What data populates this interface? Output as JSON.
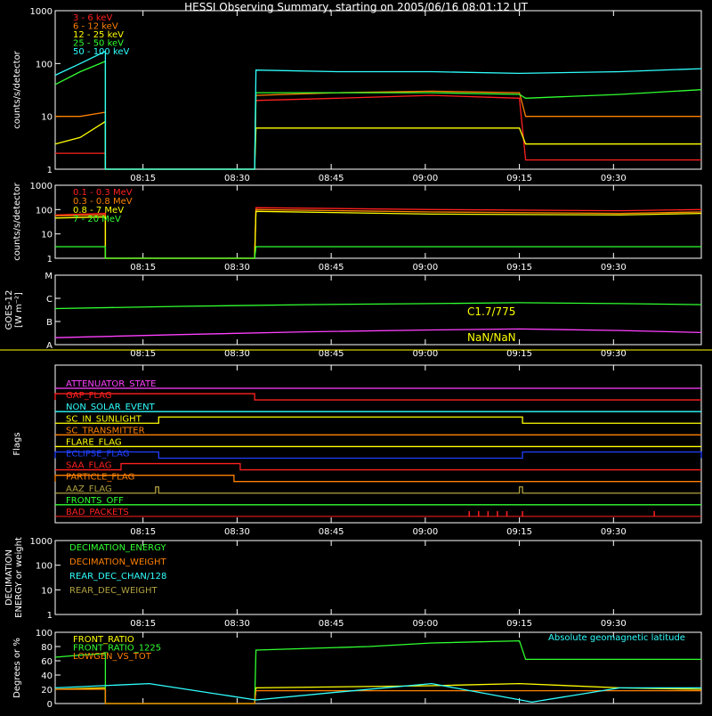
{
  "title": "HESSI Observing Summary, starting on 2005/06/16 08:01:12 UT",
  "time_ticks": [
    "08:15",
    "08:30",
    "08:45",
    "09:00",
    "09:15",
    "09:30"
  ],
  "time_tick_minutes": [
    14,
    29,
    44,
    59,
    74,
    89
  ],
  "time_span_minutes": [
    0,
    103
  ],
  "colors": {
    "axis": "#ffffff",
    "red": "#ff2020",
    "orange": "#ff8000",
    "yellow": "#ffff00",
    "green": "#30ff30",
    "cyan": "#30ffff",
    "magenta": "#ff40ff",
    "blue": "#2040ff",
    "olive": "#b0a040"
  },
  "chart_data": [
    {
      "type": "line",
      "panel": "rates_low",
      "ylabel": "counts/s/detector",
      "scale": "log",
      "ylim": [
        1,
        1000
      ],
      "y_ticks": [
        "1",
        "10",
        "100",
        "1000"
      ],
      "gap_minutes": [
        8,
        31.8
      ],
      "series": [
        {
          "name": "3 - 6 keV",
          "color": "red",
          "x": [
            0,
            4,
            8,
            32,
            45,
            60,
            74,
            75,
            90,
            103
          ],
          "y": [
            2,
            2,
            2,
            20,
            22,
            25,
            22,
            1.5,
            1.5,
            1.5
          ]
        },
        {
          "name": "6 - 12 keV",
          "color": "orange",
          "x": [
            0,
            4,
            8,
            32,
            45,
            60,
            74,
            75,
            90,
            103
          ],
          "y": [
            10,
            10,
            12,
            25,
            28,
            30,
            28,
            10,
            10,
            10
          ]
        },
        {
          "name": "12 - 25 keV",
          "color": "yellow",
          "x": [
            0,
            4,
            8,
            32,
            45,
            60,
            74,
            75,
            90,
            103
          ],
          "y": [
            3,
            4,
            8,
            6,
            6,
            6,
            6,
            3,
            3,
            3
          ]
        },
        {
          "name": "25 - 50 keV",
          "color": "green",
          "x": [
            0,
            4,
            8,
            32,
            45,
            60,
            74,
            75,
            90,
            103
          ],
          "y": [
            40,
            70,
            110,
            28,
            28,
            28,
            26,
            22,
            26,
            32
          ]
        },
        {
          "name": "50 - 100 keV",
          "color": "cyan",
          "x": [
            0,
            4,
            8,
            32,
            45,
            60,
            74,
            90,
            103
          ],
          "y": [
            60,
            100,
            170,
            75,
            70,
            70,
            65,
            70,
            80
          ]
        }
      ]
    },
    {
      "type": "line",
      "panel": "rates_high",
      "ylabel": "counts/s/detector",
      "scale": "log",
      "ylim": [
        1,
        1000
      ],
      "y_ticks": [
        "1",
        "10",
        "100",
        "1000"
      ],
      "gap_minutes": [
        8,
        31.8
      ],
      "series": [
        {
          "name": "0.1 - 0.3 MeV",
          "color": "red",
          "x": [
            0,
            8,
            32,
            60,
            90,
            103
          ],
          "y": [
            60,
            70,
            120,
            100,
            90,
            100
          ]
        },
        {
          "name": "0.3 - 0.8 MeV",
          "color": "orange",
          "x": [
            0,
            8,
            32,
            60,
            90,
            103
          ],
          "y": [
            55,
            60,
            100,
            80,
            70,
            80
          ]
        },
        {
          "name": "0.8 - 7 MeV",
          "color": "yellow",
          "x": [
            0,
            8,
            32,
            60,
            90,
            103
          ],
          "y": [
            45,
            50,
            85,
            65,
            60,
            70
          ]
        },
        {
          "name": "7 - 20 MeV",
          "color": "green",
          "x": [
            0,
            8,
            32,
            60,
            90,
            103
          ],
          "y": [
            3,
            3,
            3,
            3,
            3,
            3
          ]
        }
      ]
    },
    {
      "type": "line",
      "panel": "goes",
      "ylabel": "GOES-12",
      "ylabel2": "[W m⁻²]",
      "scale": "log",
      "ylim": [
        1e-08,
        0.0001
      ],
      "y_ticks": [
        "A",
        "B",
        "C",
        "M"
      ],
      "annotations": [
        "C1.7/775",
        "NaN/NaN"
      ],
      "series": [
        {
          "color": "green",
          "x": [
            0,
            20,
            40,
            60,
            74,
            90,
            103
          ],
          "y": [
            1.2e-06,
            1.6e-06,
            2e-06,
            2.3e-06,
            2.6e-06,
            2.3e-06,
            2e-06
          ]
        },
        {
          "color": "magenta",
          "x": [
            0,
            20,
            40,
            60,
            74,
            90,
            103
          ],
          "y": [
            2.5e-08,
            3.8e-08,
            5.5e-08,
            7e-08,
            8e-08,
            6.5e-08,
            5e-08
          ]
        }
      ]
    },
    {
      "type": "table",
      "panel": "flags",
      "ylabel": "Flags",
      "rows": [
        {
          "name": "ATTENUATOR_STATE",
          "color": "magenta",
          "on": []
        },
        {
          "name": "GAP_FLAG",
          "color": "red",
          "on": [
            [
              0,
              31.8
            ]
          ]
        },
        {
          "name": "NON_SOLAR_EVENT",
          "color": "cyan",
          "on": []
        },
        {
          "name": "SC_IN_SUNLIGHT",
          "color": "yellow",
          "on": [
            [
              16.5,
              74.5
            ]
          ]
        },
        {
          "name": "SC_TRANSMITTER",
          "color": "orange",
          "on": []
        },
        {
          "name": "FLARE_FLAG",
          "color": "yellow",
          "on": []
        },
        {
          "name": "ECLIPSE_FLAG",
          "color": "blue",
          "on": [
            [
              0,
              16.5
            ],
            [
              74.5,
              103
            ]
          ]
        },
        {
          "name": "SAA_FLAG",
          "color": "red",
          "on": [
            [
              10.5,
              29.5
            ]
          ]
        },
        {
          "name": "PARTICLE_FLAG",
          "color": "orange",
          "on": [
            [
              0,
              28.5
            ]
          ]
        },
        {
          "name": "AAZ_FLAG",
          "color": "olive",
          "on": [
            [
              16.0,
              16.5
            ],
            [
              74.0,
              74.5
            ]
          ]
        },
        {
          "name": "FRONTS_OFF",
          "color": "green",
          "on": []
        },
        {
          "name": "BAD_PACKETS",
          "color": "red",
          "spikes": [
            66,
            67.5,
            69,
            70.5,
            72,
            74.5,
            95.5
          ]
        }
      ]
    },
    {
      "type": "line",
      "panel": "decimation",
      "ylabel": "DECIMATION",
      "ylabel2": "ENERGY or weight",
      "scale": "log",
      "ylim": [
        1,
        1000
      ],
      "y_ticks": [
        "1",
        "10",
        "100",
        "1000"
      ],
      "series": [
        {
          "name": "DECIMATION_ENERGY",
          "color": "green",
          "x": [],
          "y": []
        },
        {
          "name": "DECIMATION_WEIGHT",
          "color": "orange",
          "x": [],
          "y": []
        },
        {
          "name": "REAR_DEC_CHAN/128",
          "color": "cyan",
          "x": [],
          "y": []
        },
        {
          "name": "REAR_DEC_WEIGHT",
          "color": "olive",
          "x": [],
          "y": []
        }
      ]
    },
    {
      "type": "line",
      "panel": "ratios",
      "ylabel": "Degrees or %",
      "scale": "linear",
      "ylim": [
        0,
        100
      ],
      "y_ticks": [
        "0",
        "20",
        "40",
        "60",
        "80",
        "100"
      ],
      "annotations": [
        "Absolute geomagnetic latitude"
      ],
      "gap_minutes": [
        8,
        31.8
      ],
      "series": [
        {
          "name": "FRONT_RATIO",
          "color": "yellow",
          "x": [
            0,
            8,
            32,
            60,
            74,
            90,
            103
          ],
          "y": [
            20,
            22,
            22,
            25,
            28,
            22,
            20
          ]
        },
        {
          "name": "FRONT_RATIO_1225",
          "color": "green",
          "x": [
            0,
            4,
            8,
            32,
            50,
            60,
            74,
            75,
            90,
            103
          ],
          "y": [
            65,
            68,
            70,
            75,
            80,
            85,
            88,
            62,
            62,
            62
          ]
        },
        {
          "name": "LOWGEN_VS_TOT",
          "color": "orange",
          "x": [
            0,
            8,
            32,
            60,
            90,
            103
          ],
          "y": [
            20,
            20,
            18,
            18,
            18,
            18
          ]
        },
        {
          "name": "Absolute geomagnetic latitude",
          "color": "cyan",
          "x": [
            0,
            15,
            32,
            45,
            60,
            76,
            90,
            103
          ],
          "y": [
            22,
            28,
            5,
            16,
            28,
            2,
            22,
            22
          ]
        }
      ]
    }
  ]
}
